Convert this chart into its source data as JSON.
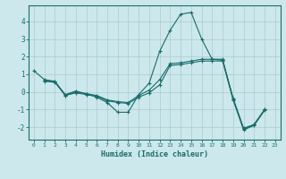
{
  "title": "",
  "xlabel": "Humidex (Indice chaleur)",
  "bg_color": "#cce8ec",
  "grid_color": "#aacccc",
  "line_color": "#1a6b6b",
  "x_ticks": [
    0,
    1,
    2,
    3,
    4,
    5,
    6,
    7,
    8,
    9,
    10,
    11,
    12,
    13,
    14,
    15,
    16,
    17,
    18,
    19,
    20,
    21,
    22,
    23
  ],
  "ylim": [
    -2.7,
    4.9
  ],
  "xlim": [
    -0.5,
    23.5
  ],
  "yticks": [
    -2,
    -1,
    0,
    1,
    2,
    3,
    4
  ],
  "line1_x": [
    0,
    1,
    2,
    3,
    4,
    5,
    6,
    7,
    8,
    9,
    10,
    11,
    12,
    13,
    14,
    15,
    16,
    17,
    18,
    19,
    20,
    21,
    22
  ],
  "line1_y": [
    1.2,
    0.7,
    0.6,
    -0.15,
    0.05,
    -0.1,
    -0.3,
    -0.6,
    -1.15,
    -1.15,
    -0.15,
    0.5,
    2.3,
    3.5,
    4.4,
    4.5,
    3.0,
    1.85,
    1.8,
    -0.35,
    -2.05,
    -1.85,
    -1.0
  ],
  "line2_x": [
    1,
    2,
    3,
    4,
    5,
    6,
    7,
    8,
    9,
    10,
    11,
    12,
    13,
    14,
    15,
    16,
    17,
    18,
    19,
    20,
    21,
    22
  ],
  "line2_y": [
    0.65,
    0.6,
    -0.2,
    0.0,
    -0.1,
    -0.2,
    -0.45,
    -0.55,
    -0.6,
    -0.2,
    0.1,
    0.7,
    1.6,
    1.65,
    1.75,
    1.85,
    1.85,
    1.85,
    -0.4,
    -2.1,
    -1.85,
    -1.0
  ],
  "line3_x": [
    1,
    2,
    3,
    4,
    5,
    6,
    7,
    8,
    9,
    10,
    11,
    12,
    13,
    14,
    15,
    16,
    17,
    18,
    19,
    20,
    21,
    22
  ],
  "line3_y": [
    0.6,
    0.55,
    -0.2,
    -0.05,
    -0.15,
    -0.25,
    -0.5,
    -0.6,
    -0.65,
    -0.3,
    -0.05,
    0.4,
    1.5,
    1.55,
    1.65,
    1.75,
    1.75,
    1.75,
    -0.45,
    -2.15,
    -1.9,
    -1.05
  ],
  "figsize": [
    3.2,
    2.0
  ],
  "dpi": 100
}
